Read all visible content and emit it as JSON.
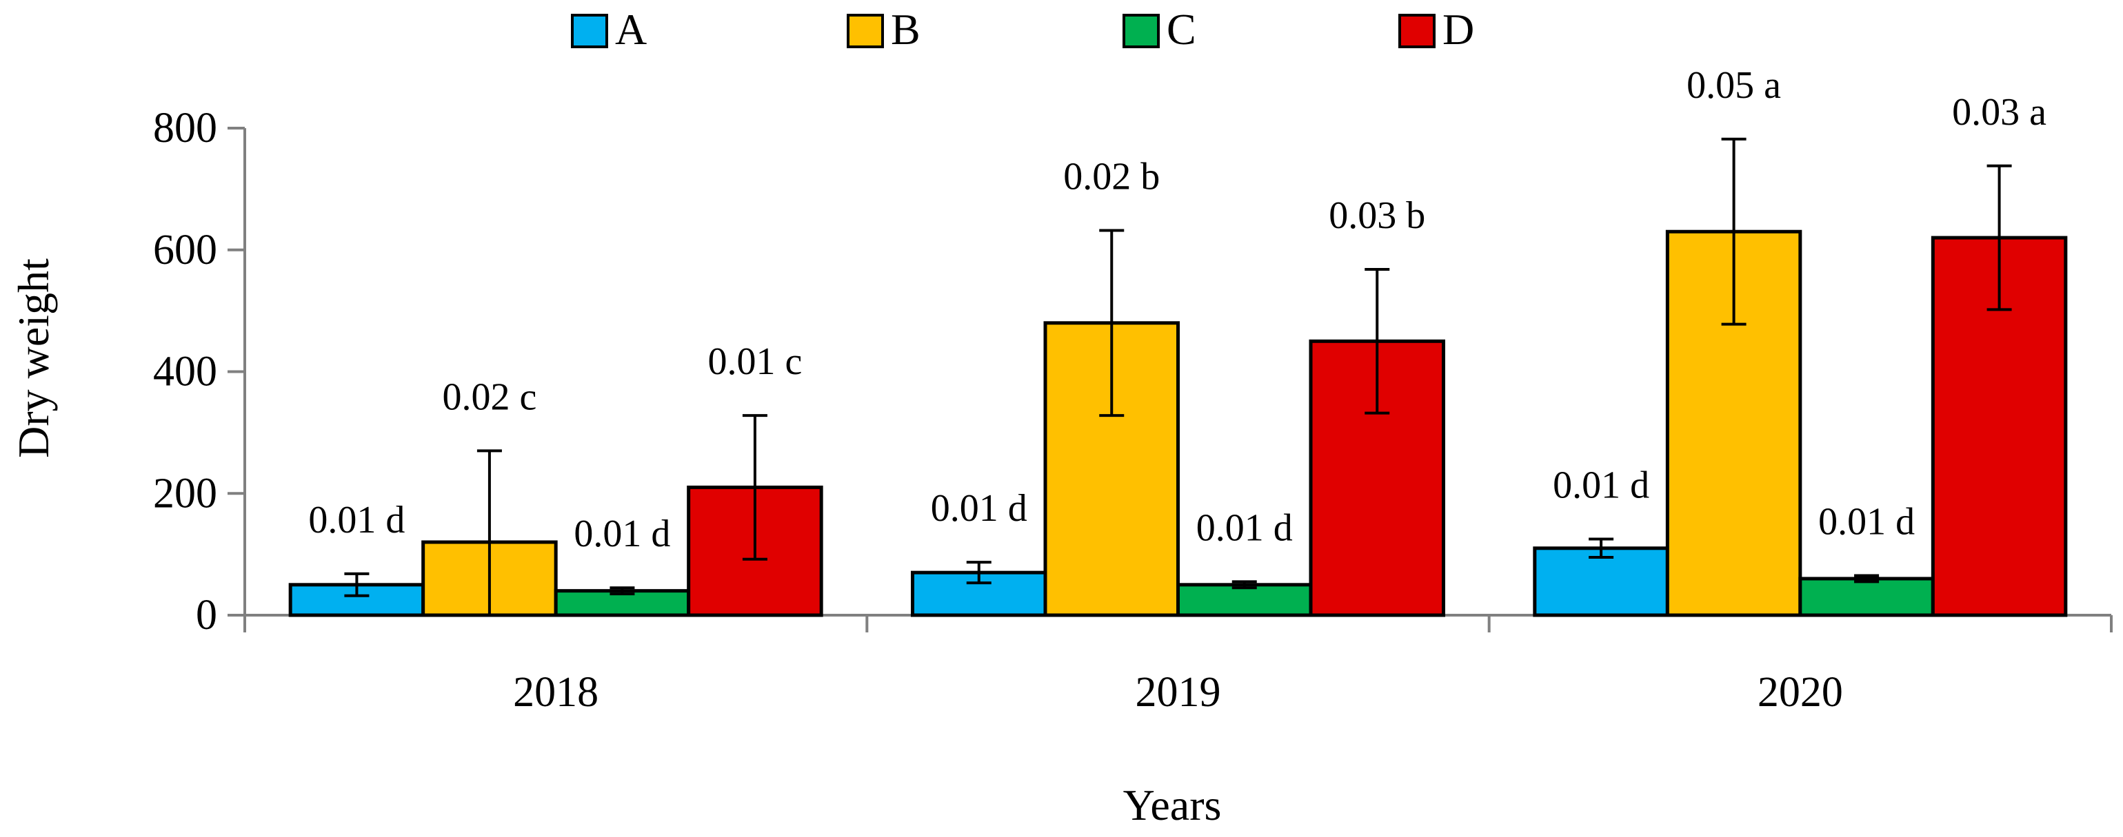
{
  "chart_data": {
    "type": "bar",
    "categories": [
      "2018",
      "2019",
      "2020"
    ],
    "series": [
      {
        "name": "A",
        "color": "#00B0F0",
        "values": [
          50,
          70,
          110
        ],
        "errors": [
          18,
          17,
          15
        ],
        "labels": [
          "0.01 d",
          "0.01 d",
          "0.01 d"
        ]
      },
      {
        "name": "B",
        "color": "#FFC000",
        "values": [
          120,
          480,
          630
        ],
        "errors": [
          150,
          152,
          152
        ],
        "labels": [
          "0.02 c",
          "0.02 b",
          "0.05 a"
        ]
      },
      {
        "name": "C",
        "color": "#00B050",
        "values": [
          40,
          50,
          60
        ],
        "errors": [
          5,
          5,
          5
        ],
        "labels": [
          "0.01 d",
          "0.01 d",
          "0.01 d"
        ]
      },
      {
        "name": "D",
        "color": "#E00000",
        "values": [
          210,
          450,
          620
        ],
        "errors": [
          118,
          118,
          118
        ],
        "labels": [
          "0.01 c",
          "0.03 b",
          "0.03 a"
        ]
      }
    ],
    "xlabel": "Years",
    "ylabel": "Dry weight",
    "ylim": [
      0,
      800
    ],
    "yticks": [
      "0",
      "200",
      "400",
      "600",
      "800"
    ],
    "grid": false,
    "legend_position": "top-center"
  }
}
